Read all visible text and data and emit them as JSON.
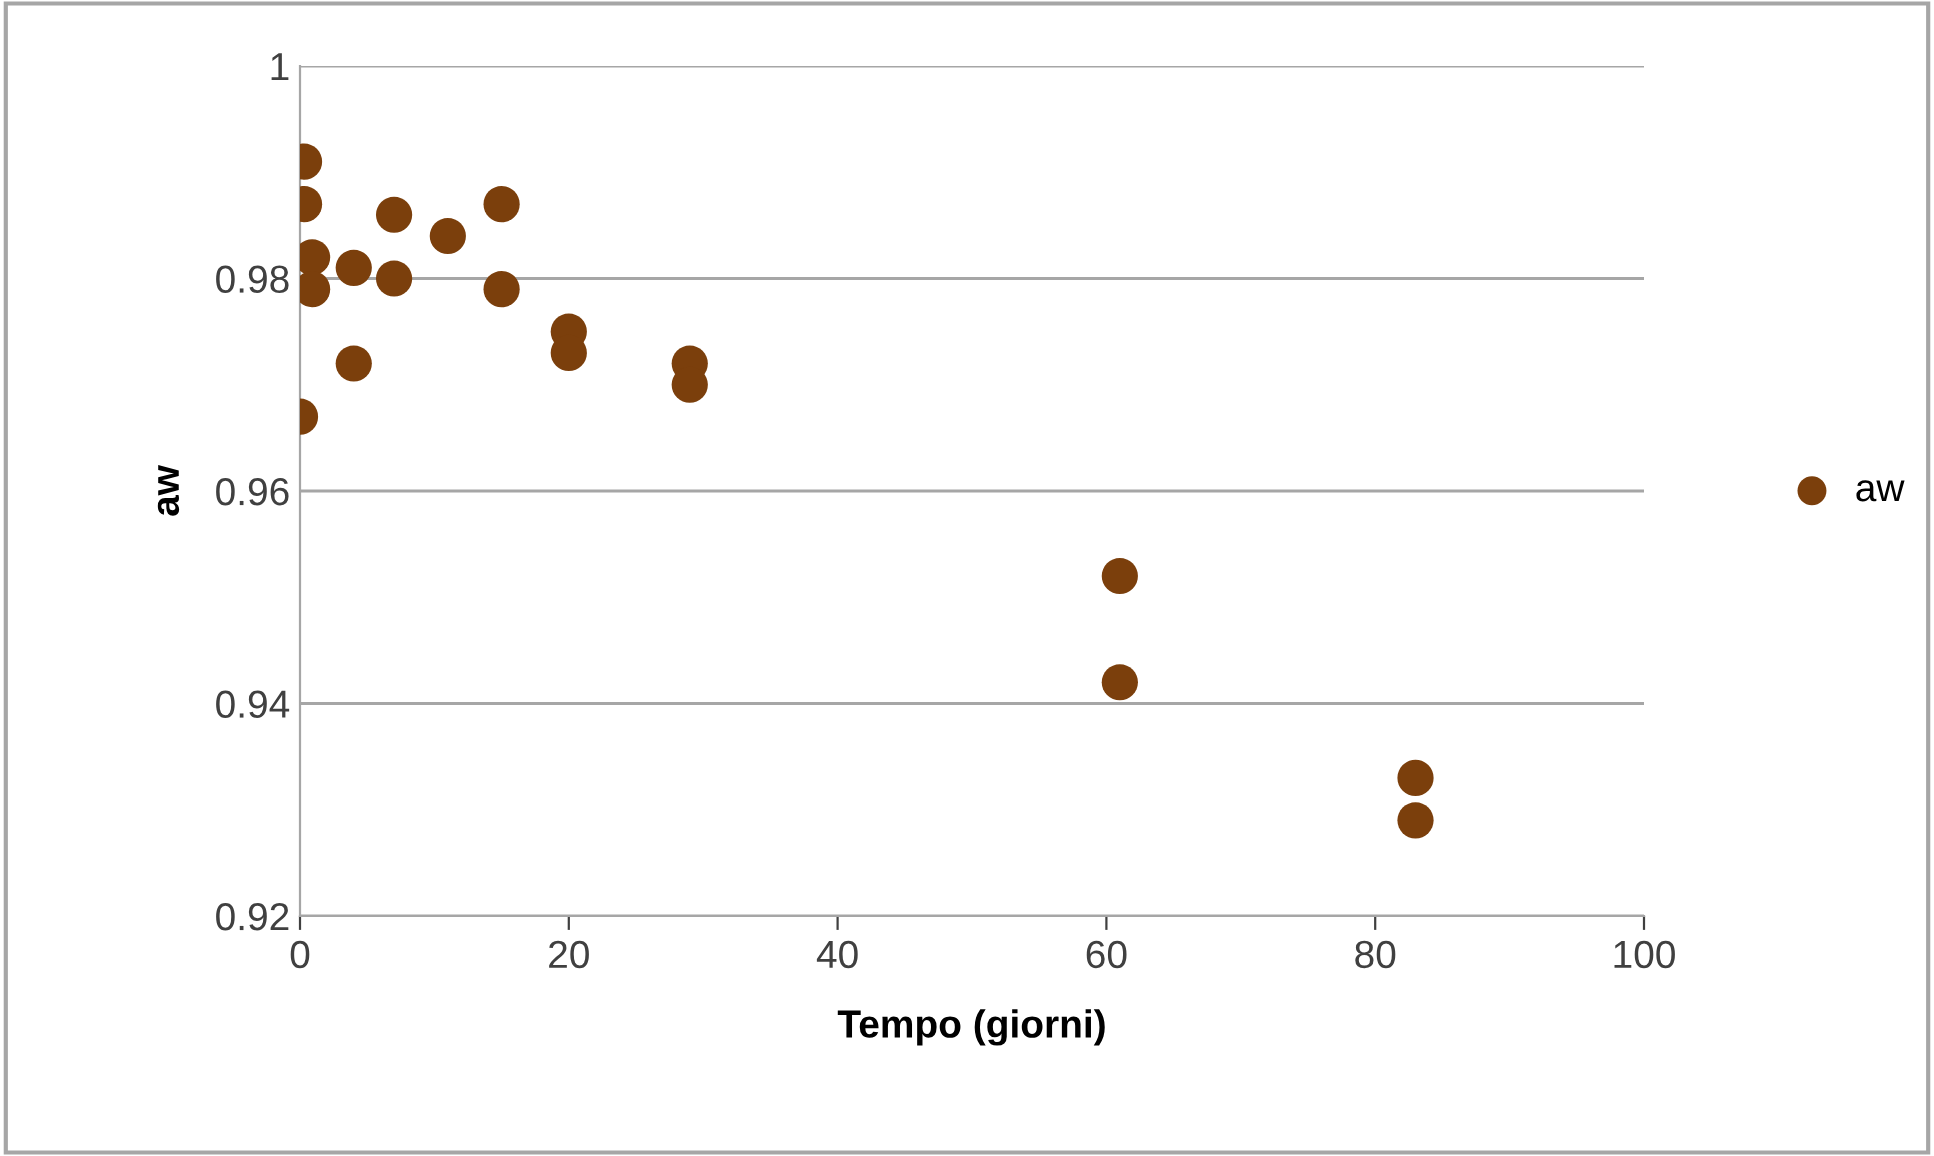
{
  "chart_data": {
    "type": "scatter",
    "xlabel": "Tempo (giorni)",
    "ylabel": "aw",
    "series": [
      {
        "name": "aw",
        "color": "#7b3f0c",
        "x": [
          0.3,
          0.3,
          0.9,
          0.9,
          0,
          4,
          4,
          7,
          7,
          11,
          15,
          15,
          20,
          20,
          29,
          29,
          61,
          61,
          83,
          83
        ],
        "values": [
          0.991,
          0.987,
          0.982,
          0.979,
          0.967,
          0.981,
          0.972,
          0.986,
          0.98,
          0.984,
          0.987,
          0.979,
          0.975,
          0.973,
          0.972,
          0.97,
          0.952,
          0.942,
          0.933,
          0.929
        ]
      }
    ],
    "xlim": [
      0,
      100
    ],
    "xticks": [
      0,
      20,
      40,
      60,
      80,
      100
    ],
    "ylim": [
      0.92,
      1
    ],
    "yticks": [
      {
        "value": 0.92,
        "label": "0.92"
      },
      {
        "value": 0.94,
        "label": "0.94"
      },
      {
        "value": 0.96,
        "label": "0.96"
      },
      {
        "value": 0.98,
        "label": "0.98"
      },
      {
        "value": 1,
        "label": "1"
      }
    ],
    "grid": "y",
    "legend": "right",
    "marker": "circle"
  }
}
